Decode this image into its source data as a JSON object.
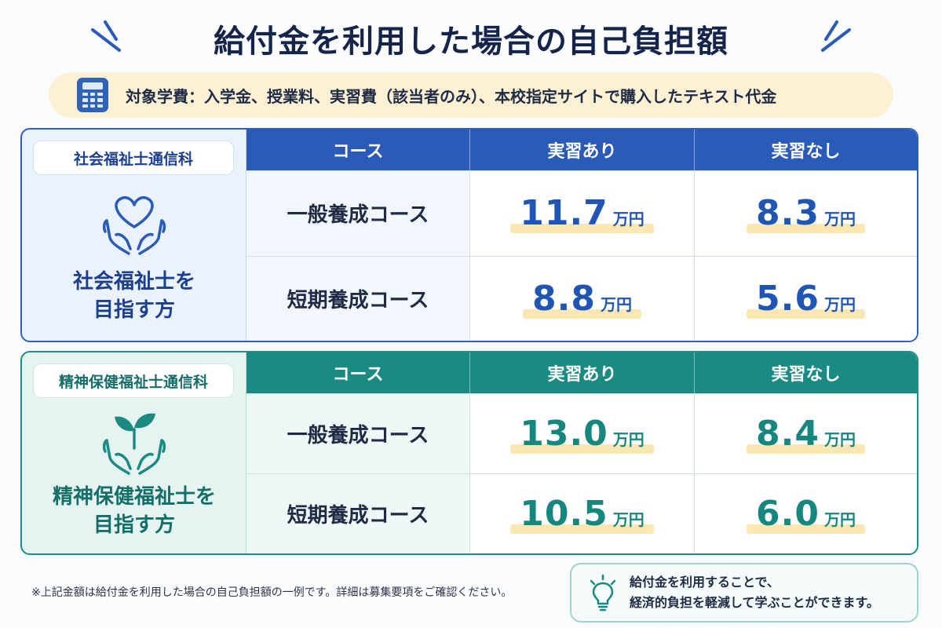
{
  "title": "給付金を利用した場合の自己負担額",
  "scope": {
    "icon": "calculator-icon",
    "text": "対象学費：入学金、授業料、実習費（該当者のみ）、本校指定サイトで購入したテキスト代金"
  },
  "colors": {
    "blue": "#2a5bb8",
    "teal": "#1a8a82",
    "highlight": "#fbe7b2"
  },
  "sections": [
    {
      "badge": "社会福祉士通信科",
      "icon": "heart-hands-icon",
      "caption_line1": "社会福祉士を",
      "caption_line2": "目指す方",
      "headers": [
        "コース",
        "実習あり",
        "実習なし"
      ],
      "rows": [
        {
          "course": "一般養成コース",
          "with_practice": "11.7",
          "without_practice": "8.3"
        },
        {
          "course": "短期養成コース",
          "with_practice": "8.8",
          "without_practice": "5.6"
        }
      ]
    },
    {
      "badge": "精神保健福祉士通信科",
      "icon": "sprout-hands-icon",
      "caption_line1": "精神保健福祉士を",
      "caption_line2": "目指す方",
      "headers": [
        "コース",
        "実習あり",
        "実習なし"
      ],
      "rows": [
        {
          "course": "一般養成コース",
          "with_practice": "13.0",
          "without_practice": "8.4"
        },
        {
          "course": "短期養成コース",
          "with_practice": "10.5",
          "without_practice": "6.0"
        }
      ]
    }
  ],
  "unit": "万円",
  "footnote": "※上記金額は給付金を利用した場合の自己負担額の一例です。詳細は募集要項をご確認ください。",
  "tip": {
    "icon": "lightbulb-icon",
    "line1": "給付金を利用することで、",
    "line2": "経済的負担を軽減して学ぶことができます。"
  }
}
